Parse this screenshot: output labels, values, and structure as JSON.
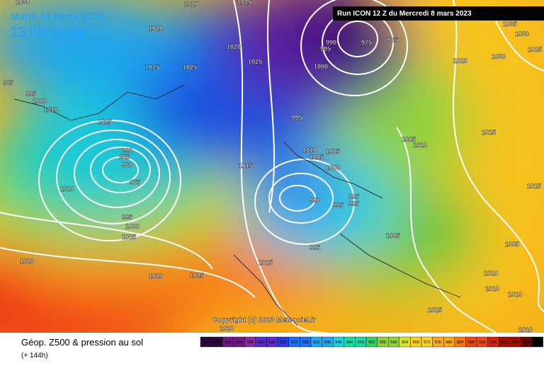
{
  "header": {
    "date": "Mardi 14 mars 2023",
    "time": "13:00 locale",
    "run": "Run ICON 12 Z du Mercredi 8 mars 2023"
  },
  "copyright": "Copyright (c) 2023 Meteociel.fr",
  "footer": {
    "title": "Géop. Z500 & pression au sol",
    "lead_time": "(+ 144h)"
  },
  "colorbar": {
    "ticks": [
      492,
      496,
      500,
      504,
      508,
      512,
      516,
      520,
      524,
      528,
      532,
      536,
      540,
      544,
      548,
      552,
      556,
      560,
      564,
      568,
      572,
      576,
      580,
      584,
      588,
      592,
      596,
      600,
      604,
      608,
      612
    ]
  },
  "isobar_labels": [
    1030,
    1020,
    1025,
    1020,
    1020,
    1015,
    1025,
    1025,
    1015,
    1010,
    985,
    995,
    1000,
    1010,
    990,
    985,
    980,
    975,
    995,
    1000,
    1005,
    1020,
    1020,
    1025,
    1015,
    990,
    995,
    975,
    985,
    1000,
    995,
    1010,
    1005,
    1005,
    1015,
    1000,
    990,
    995,
    995,
    995,
    1005,
    1010,
    1005,
    995,
    1015,
    1035,
    1030,
    1025,
    1030,
    1020,
    1015,
    1005,
    1010,
    1010,
    1010,
    1015,
    1010,
    1020
  ]
}
